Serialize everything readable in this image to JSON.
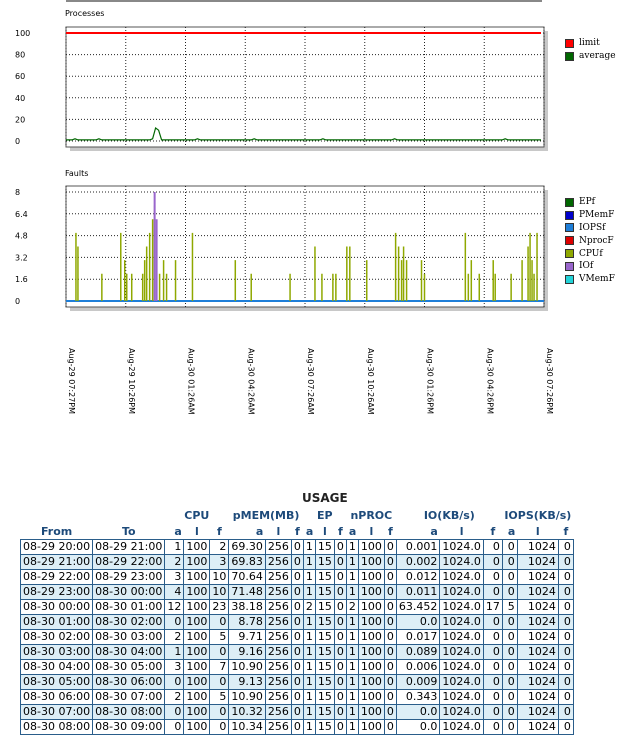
{
  "colors": {
    "limit": "#ff0000",
    "average": "#006600",
    "EPf": "#006600",
    "PMemF": "#0000cc",
    "IOPSf": "#1e7ed8",
    "NprocF": "#dd0000",
    "CPUf": "#8fa800",
    "IOf": "#9966cc",
    "VMemF": "#22d3d8",
    "header_text": "#1d4a7a",
    "row_alt": "#ddeef6",
    "table_border": "#2a5d8a"
  },
  "x_axis": {
    "tick_labels": [
      "Aug-29 07:27PM",
      "Aug-29 10:26PM",
      "Aug-30 01:26AM",
      "Aug-30 04:26AM",
      "Aug-30 07:26AM",
      "Aug-30 10:26AM",
      "Aug-30 01:26PM",
      "Aug-30 04:26PM",
      "Aug-30 07:26PM"
    ]
  },
  "chart_data": [
    {
      "type": "line",
      "title": "Processes",
      "ylim": [
        0,
        100
      ],
      "ytick_labels": [
        "100",
        "80",
        "60",
        "40",
        "20",
        "0"
      ],
      "legend_placement": "right",
      "x": [
        0,
        3,
        6,
        9,
        12,
        15,
        18,
        21,
        24,
        27,
        30,
        33,
        36,
        39,
        42,
        45,
        48,
        51,
        54,
        57,
        60,
        63,
        66,
        69,
        72,
        75,
        78,
        81,
        84,
        87,
        90,
        93,
        96,
        99,
        102,
        105,
        108,
        111,
        114,
        117,
        120,
        123,
        126,
        129,
        132,
        135,
        138,
        141,
        144,
        147,
        150,
        153,
        156,
        159,
        162,
        165,
        168,
        171,
        174,
        177,
        180,
        183,
        186,
        189,
        192,
        195,
        198,
        201,
        204,
        207,
        210,
        213,
        216,
        219,
        222,
        225,
        228,
        231,
        234,
        237,
        240,
        243,
        246,
        249,
        252,
        255,
        258,
        261,
        264,
        267,
        270,
        273,
        276,
        279,
        282,
        285,
        288,
        291,
        294,
        297,
        300,
        303,
        306,
        309,
        312,
        315,
        318,
        321,
        324,
        327,
        330,
        333,
        336,
        339,
        342,
        345,
        348,
        351,
        354,
        357,
        360,
        363,
        366,
        369,
        372,
        375,
        378,
        381,
        384,
        387,
        390,
        393,
        396,
        399,
        402,
        405,
        408,
        411,
        414,
        417,
        420,
        423,
        426,
        429,
        432,
        435,
        438,
        441,
        444,
        447,
        450,
        453,
        456,
        459,
        462,
        465,
        468,
        471,
        474,
        477
      ],
      "x_unit": "minutes from Aug-29 07:27PM",
      "series": [
        {
          "name": "limit",
          "values": [
            100,
            100,
            100,
            100,
            100,
            100,
            100,
            100,
            100,
            100,
            100,
            100,
            100,
            100,
            100,
            100,
            100,
            100,
            100,
            100,
            100,
            100,
            100,
            100,
            100,
            100,
            100,
            100,
            100,
            100,
            100,
            100,
            100,
            100,
            100,
            100,
            100,
            100,
            100,
            100,
            100,
            100,
            100,
            100,
            100,
            100,
            100,
            100,
            100,
            100,
            100,
            100,
            100,
            100,
            100,
            100,
            100,
            100,
            100,
            100,
            100,
            100,
            100,
            100,
            100,
            100,
            100,
            100,
            100,
            100,
            100,
            100,
            100,
            100,
            100,
            100,
            100,
            100,
            100,
            100,
            100,
            100,
            100,
            100,
            100,
            100,
            100,
            100,
            100,
            100,
            100,
            100,
            100,
            100,
            100,
            100,
            100,
            100,
            100,
            100,
            100,
            100,
            100,
            100,
            100,
            100,
            100,
            100,
            100,
            100,
            100,
            100,
            100,
            100,
            100,
            100,
            100,
            100,
            100,
            100,
            100,
            100,
            100,
            100,
            100,
            100,
            100,
            100,
            100,
            100,
            100,
            100,
            100,
            100,
            100,
            100,
            100,
            100,
            100,
            100,
            100,
            100,
            100,
            100,
            100,
            100,
            100,
            100,
            100,
            100,
            100,
            100,
            100,
            100,
            100,
            100,
            100,
            100,
            100,
            100
          ]
        },
        {
          "name": "average",
          "values": [
            1,
            1,
            1,
            2,
            1,
            1,
            1,
            1,
            1,
            1,
            1,
            2,
            1,
            1,
            1,
            1,
            1,
            1,
            1,
            1,
            1,
            1,
            1,
            1,
            1,
            1,
            1,
            1,
            1,
            2,
            12,
            10,
            1,
            1,
            1,
            1,
            1,
            1,
            1,
            1,
            1,
            1,
            1,
            1,
            2,
            1,
            1,
            1,
            1,
            1,
            1,
            1,
            1,
            1,
            1,
            1,
            1,
            1,
            1,
            1,
            1,
            1,
            1,
            2,
            1,
            1,
            1,
            1,
            1,
            1,
            1,
            1,
            1,
            1,
            1,
            1,
            1,
            1,
            1,
            1,
            1,
            1,
            1,
            1,
            1,
            1,
            2,
            1,
            1,
            1,
            1,
            1,
            1,
            1,
            1,
            1,
            1,
            1,
            1,
            1,
            1,
            1,
            1,
            1,
            1,
            1,
            1,
            1,
            1,
            1,
            2,
            1,
            1,
            1,
            1,
            1,
            1,
            1,
            1,
            1,
            1,
            1,
            1,
            1,
            1,
            1,
            1,
            1,
            1,
            1,
            1,
            1,
            1,
            1,
            1,
            1,
            1,
            1,
            1,
            1,
            1,
            1,
            1,
            1,
            1,
            1,
            1,
            2,
            1,
            1,
            1,
            1,
            1,
            1,
            1,
            1,
            1,
            1,
            1,
            1
          ]
        }
      ]
    },
    {
      "type": "bar",
      "title": "Faults",
      "ylim": [
        0,
        8
      ],
      "ytick_labels": [
        "8",
        "6.4",
        "4.8",
        "3.2",
        "1.6",
        "0"
      ],
      "legend_placement": "right",
      "x_unit": "minutes from Aug-29 07:27PM",
      "series": [
        {
          "name": "EPf",
          "points": []
        },
        {
          "name": "PMemF",
          "points": []
        },
        {
          "name": "IOPSf",
          "points": [
            {
              "x": 0,
              "y": 0
            },
            {
              "x": 480,
              "y": 0
            }
          ]
        },
        {
          "name": "NprocF",
          "points": []
        },
        {
          "name": "CPUf",
          "points": [
            {
              "x": 10,
              "y": 5
            },
            {
              "x": 12,
              "y": 4
            },
            {
              "x": 36,
              "y": 2
            },
            {
              "x": 55,
              "y": 5
            },
            {
              "x": 59,
              "y": 3
            },
            {
              "x": 61,
              "y": 2
            },
            {
              "x": 66,
              "y": 2
            },
            {
              "x": 77,
              "y": 2
            },
            {
              "x": 79,
              "y": 3
            },
            {
              "x": 81,
              "y": 4
            },
            {
              "x": 84,
              "y": 5
            },
            {
              "x": 87,
              "y": 6
            },
            {
              "x": 89,
              "y": 7
            },
            {
              "x": 94,
              "y": 2
            },
            {
              "x": 98,
              "y": 3
            },
            {
              "x": 101,
              "y": 2
            },
            {
              "x": 110,
              "y": 3
            },
            {
              "x": 127,
              "y": 5
            },
            {
              "x": 170,
              "y": 3
            },
            {
              "x": 186,
              "y": 2
            },
            {
              "x": 225,
              "y": 2
            },
            {
              "x": 250,
              "y": 4
            },
            {
              "x": 257,
              "y": 2
            },
            {
              "x": 268,
              "y": 2
            },
            {
              "x": 271,
              "y": 2
            },
            {
              "x": 282,
              "y": 4
            },
            {
              "x": 285,
              "y": 4
            },
            {
              "x": 302,
              "y": 3
            },
            {
              "x": 331,
              "y": 5
            },
            {
              "x": 334,
              "y": 4
            },
            {
              "x": 337,
              "y": 3
            },
            {
              "x": 339,
              "y": 4
            },
            {
              "x": 342,
              "y": 3
            },
            {
              "x": 357,
              "y": 3
            },
            {
              "x": 360,
              "y": 2
            },
            {
              "x": 401,
              "y": 5
            },
            {
              "x": 404,
              "y": 2
            },
            {
              "x": 407,
              "y": 3
            },
            {
              "x": 415,
              "y": 2
            },
            {
              "x": 429,
              "y": 3
            },
            {
              "x": 431,
              "y": 2
            },
            {
              "x": 447,
              "y": 2
            },
            {
              "x": 458,
              "y": 3
            },
            {
              "x": 464,
              "y": 4
            },
            {
              "x": 466,
              "y": 5
            },
            {
              "x": 468,
              "y": 3
            },
            {
              "x": 470,
              "y": 2
            },
            {
              "x": 473,
              "y": 5
            }
          ]
        },
        {
          "name": "IOf",
          "points": [
            {
              "x": 89,
              "y": 8
            },
            {
              "x": 91,
              "y": 6
            }
          ]
        },
        {
          "name": "VMemF",
          "points": []
        }
      ]
    },
    {
      "type": "table",
      "title": "USAGE",
      "groups": [
        "CPU",
        "pMEM(MB)",
        "EP",
        "nPROC",
        "IO(KB/s)",
        "IOPS(KB/s)"
      ],
      "columns": [
        "From",
        "To",
        "a",
        "l",
        "f",
        "a",
        "l",
        "f",
        "a",
        "l",
        "f",
        "a",
        "l",
        "f",
        "a",
        "l",
        "f",
        "a",
        "l",
        "f"
      ],
      "rows": [
        [
          "08-29 20:00",
          "08-29 21:00",
          "1",
          "100",
          "2",
          "69.30",
          "256",
          "0",
          "1",
          "15",
          "0",
          "1",
          "100",
          "0",
          "0.001",
          "1024.0",
          "0",
          "0",
          "1024",
          "0"
        ],
        [
          "08-29 21:00",
          "08-29 22:00",
          "2",
          "100",
          "3",
          "69.83",
          "256",
          "0",
          "1",
          "15",
          "0",
          "1",
          "100",
          "0",
          "0.002",
          "1024.0",
          "0",
          "0",
          "1024",
          "0"
        ],
        [
          "08-29 22:00",
          "08-29 23:00",
          "3",
          "100",
          "10",
          "70.64",
          "256",
          "0",
          "1",
          "15",
          "0",
          "1",
          "100",
          "0",
          "0.012",
          "1024.0",
          "0",
          "0",
          "1024",
          "0"
        ],
        [
          "08-29 23:00",
          "08-30 00:00",
          "4",
          "100",
          "10",
          "71.48",
          "256",
          "0",
          "1",
          "15",
          "0",
          "1",
          "100",
          "0",
          "0.011",
          "1024.0",
          "0",
          "0",
          "1024",
          "0"
        ],
        [
          "08-30 00:00",
          "08-30 01:00",
          "12",
          "100",
          "23",
          "38.18",
          "256",
          "0",
          "2",
          "15",
          "0",
          "2",
          "100",
          "0",
          "63.452",
          "1024.0",
          "17",
          "5",
          "1024",
          "0"
        ],
        [
          "08-30 01:00",
          "08-30 02:00",
          "0",
          "100",
          "0",
          "8.78",
          "256",
          "0",
          "1",
          "15",
          "0",
          "1",
          "100",
          "0",
          "0.0",
          "1024.0",
          "0",
          "0",
          "1024",
          "0"
        ],
        [
          "08-30 02:00",
          "08-30 03:00",
          "2",
          "100",
          "5",
          "9.71",
          "256",
          "0",
          "1",
          "15",
          "0",
          "1",
          "100",
          "0",
          "0.017",
          "1024.0",
          "0",
          "0",
          "1024",
          "0"
        ],
        [
          "08-30 03:00",
          "08-30 04:00",
          "1",
          "100",
          "0",
          "9.16",
          "256",
          "0",
          "1",
          "15",
          "0",
          "1",
          "100",
          "0",
          "0.089",
          "1024.0",
          "0",
          "0",
          "1024",
          "0"
        ],
        [
          "08-30 04:00",
          "08-30 05:00",
          "3",
          "100",
          "7",
          "10.90",
          "256",
          "0",
          "1",
          "15",
          "0",
          "1",
          "100",
          "0",
          "0.006",
          "1024.0",
          "0",
          "0",
          "1024",
          "0"
        ],
        [
          "08-30 05:00",
          "08-30 06:00",
          "0",
          "100",
          "0",
          "9.13",
          "256",
          "0",
          "1",
          "15",
          "0",
          "1",
          "100",
          "0",
          "0.009",
          "1024.0",
          "0",
          "0",
          "1024",
          "0"
        ],
        [
          "08-30 06:00",
          "08-30 07:00",
          "2",
          "100",
          "5",
          "10.90",
          "256",
          "0",
          "1",
          "15",
          "0",
          "1",
          "100",
          "0",
          "0.343",
          "1024.0",
          "0",
          "0",
          "1024",
          "0"
        ],
        [
          "08-30 07:00",
          "08-30 08:00",
          "0",
          "100",
          "0",
          "10.32",
          "256",
          "0",
          "1",
          "15",
          "0",
          "1",
          "100",
          "0",
          "0.0",
          "1024.0",
          "0",
          "0",
          "1024",
          "0"
        ],
        [
          "08-30 08:00",
          "08-30 09:00",
          "0",
          "100",
          "0",
          "10.34",
          "256",
          "0",
          "1",
          "15",
          "0",
          "1",
          "100",
          "0",
          "0.0",
          "1024.0",
          "0",
          "0",
          "1024",
          "0"
        ]
      ]
    }
  ]
}
